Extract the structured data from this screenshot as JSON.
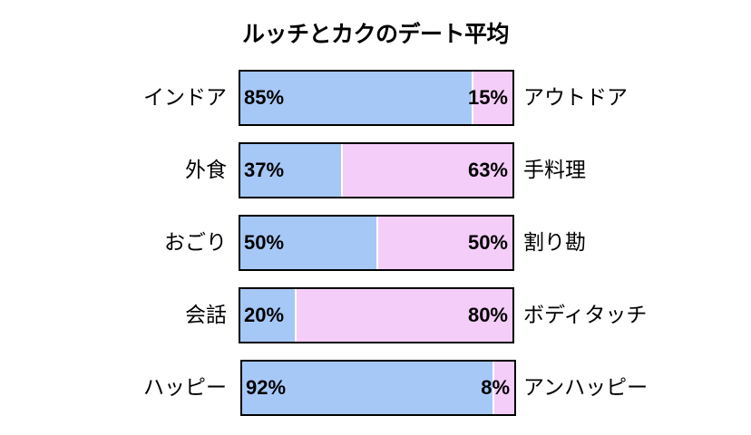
{
  "chart_data": {
    "type": "bar",
    "stacked": true,
    "orientation": "horizontal",
    "percent": true,
    "title": "ルッチとカクのデート平均",
    "rows": [
      {
        "left_label": "インドア",
        "left_value": 85,
        "left_text": "85%",
        "right_label": "アウトドア",
        "right_value": 15,
        "right_text": "15%"
      },
      {
        "left_label": "外食",
        "left_value": 37,
        "left_text": "37%",
        "right_label": "手料理",
        "right_value": 63,
        "right_text": "63%"
      },
      {
        "left_label": "おごり",
        "left_value": 50,
        "left_text": "50%",
        "right_label": "割り勘",
        "right_value": 50,
        "right_text": "50%"
      },
      {
        "left_label": "会話",
        "left_value": 20,
        "left_text": "20%",
        "right_label": "ボディタッチ",
        "right_value": 80,
        "right_text": "80%"
      },
      {
        "left_label": "ハッピー",
        "left_value": 92,
        "left_text": "92%",
        "right_label": "アンハッピー",
        "right_value": 8,
        "right_text": "8%"
      }
    ],
    "colors": {
      "left": "#a6c8f7",
      "right": "#f4cdf8",
      "border": "#000000"
    },
    "grid": false,
    "legend": "none"
  }
}
